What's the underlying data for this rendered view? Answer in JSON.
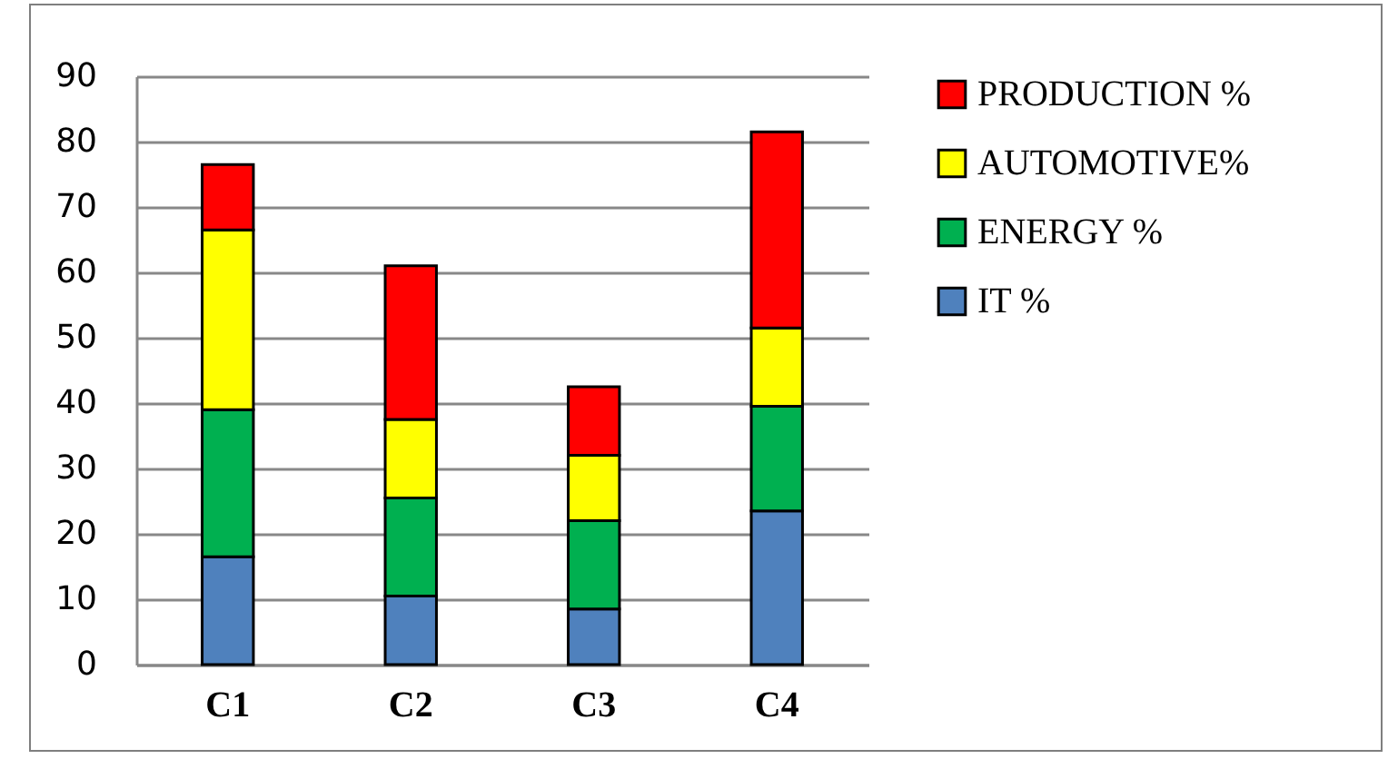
{
  "chart_data": {
    "type": "bar",
    "stacked": true,
    "categories": [
      "C1",
      "C2",
      "C3",
      "C4"
    ],
    "series": [
      {
        "name": "IT %",
        "color": "#4f81bd",
        "values": [
          16.5,
          10.5,
          8.5,
          23.5
        ]
      },
      {
        "name": "ENERGY %",
        "color": "#00b050",
        "values": [
          22.5,
          15,
          13.5,
          16
        ]
      },
      {
        "name": " AUTOMOTIVE%",
        "color": "#ffff00",
        "values": [
          27.5,
          12,
          10,
          12
        ]
      },
      {
        "name": "PRODUCTION %",
        "color": "#ff0000",
        "values": [
          10,
          23.5,
          10.5,
          30
        ]
      }
    ],
    "ylim": [
      0,
      90
    ],
    "yticks": [
      0,
      10,
      20,
      30,
      40,
      50,
      60,
      70,
      80,
      90
    ],
    "grid": "y",
    "legend": "right"
  }
}
